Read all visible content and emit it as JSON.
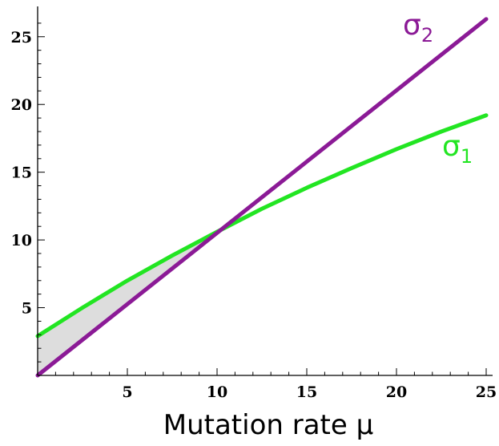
{
  "chart_data": {
    "type": "line",
    "title": "",
    "xlabel": "Mutation rate μ",
    "ylabel": "",
    "xlim": [
      0,
      25
    ],
    "ylim": [
      0,
      27
    ],
    "xticks": [
      5,
      10,
      15,
      20,
      25
    ],
    "yticks": [
      5,
      10,
      15,
      20,
      25
    ],
    "xtick_labels": [
      "5",
      "10",
      "15",
      "20",
      "25"
    ],
    "ytick_labels": [
      "5",
      "10",
      "15",
      "20",
      "25"
    ],
    "grid": false,
    "series": [
      {
        "name": "σ",
        "subscript": "2",
        "color": "#8b1a96",
        "x": [
          0,
          25
        ],
        "y": [
          0,
          26.3
        ]
      },
      {
        "name": "σ",
        "subscript": "1",
        "color": "#22e522",
        "x": [
          0,
          2.5,
          5,
          7.5,
          10,
          12.5,
          15,
          17.5,
          20,
          22.5,
          25
        ],
        "y": [
          2.9,
          5.0,
          7.0,
          8.85,
          10.6,
          12.3,
          13.85,
          15.3,
          16.7,
          18.0,
          19.2
        ]
      }
    ],
    "shaded_region": {
      "between": [
        "sigma1",
        "sigma2"
      ],
      "x_range": [
        0,
        11.3
      ],
      "color": "#dddddd"
    }
  }
}
